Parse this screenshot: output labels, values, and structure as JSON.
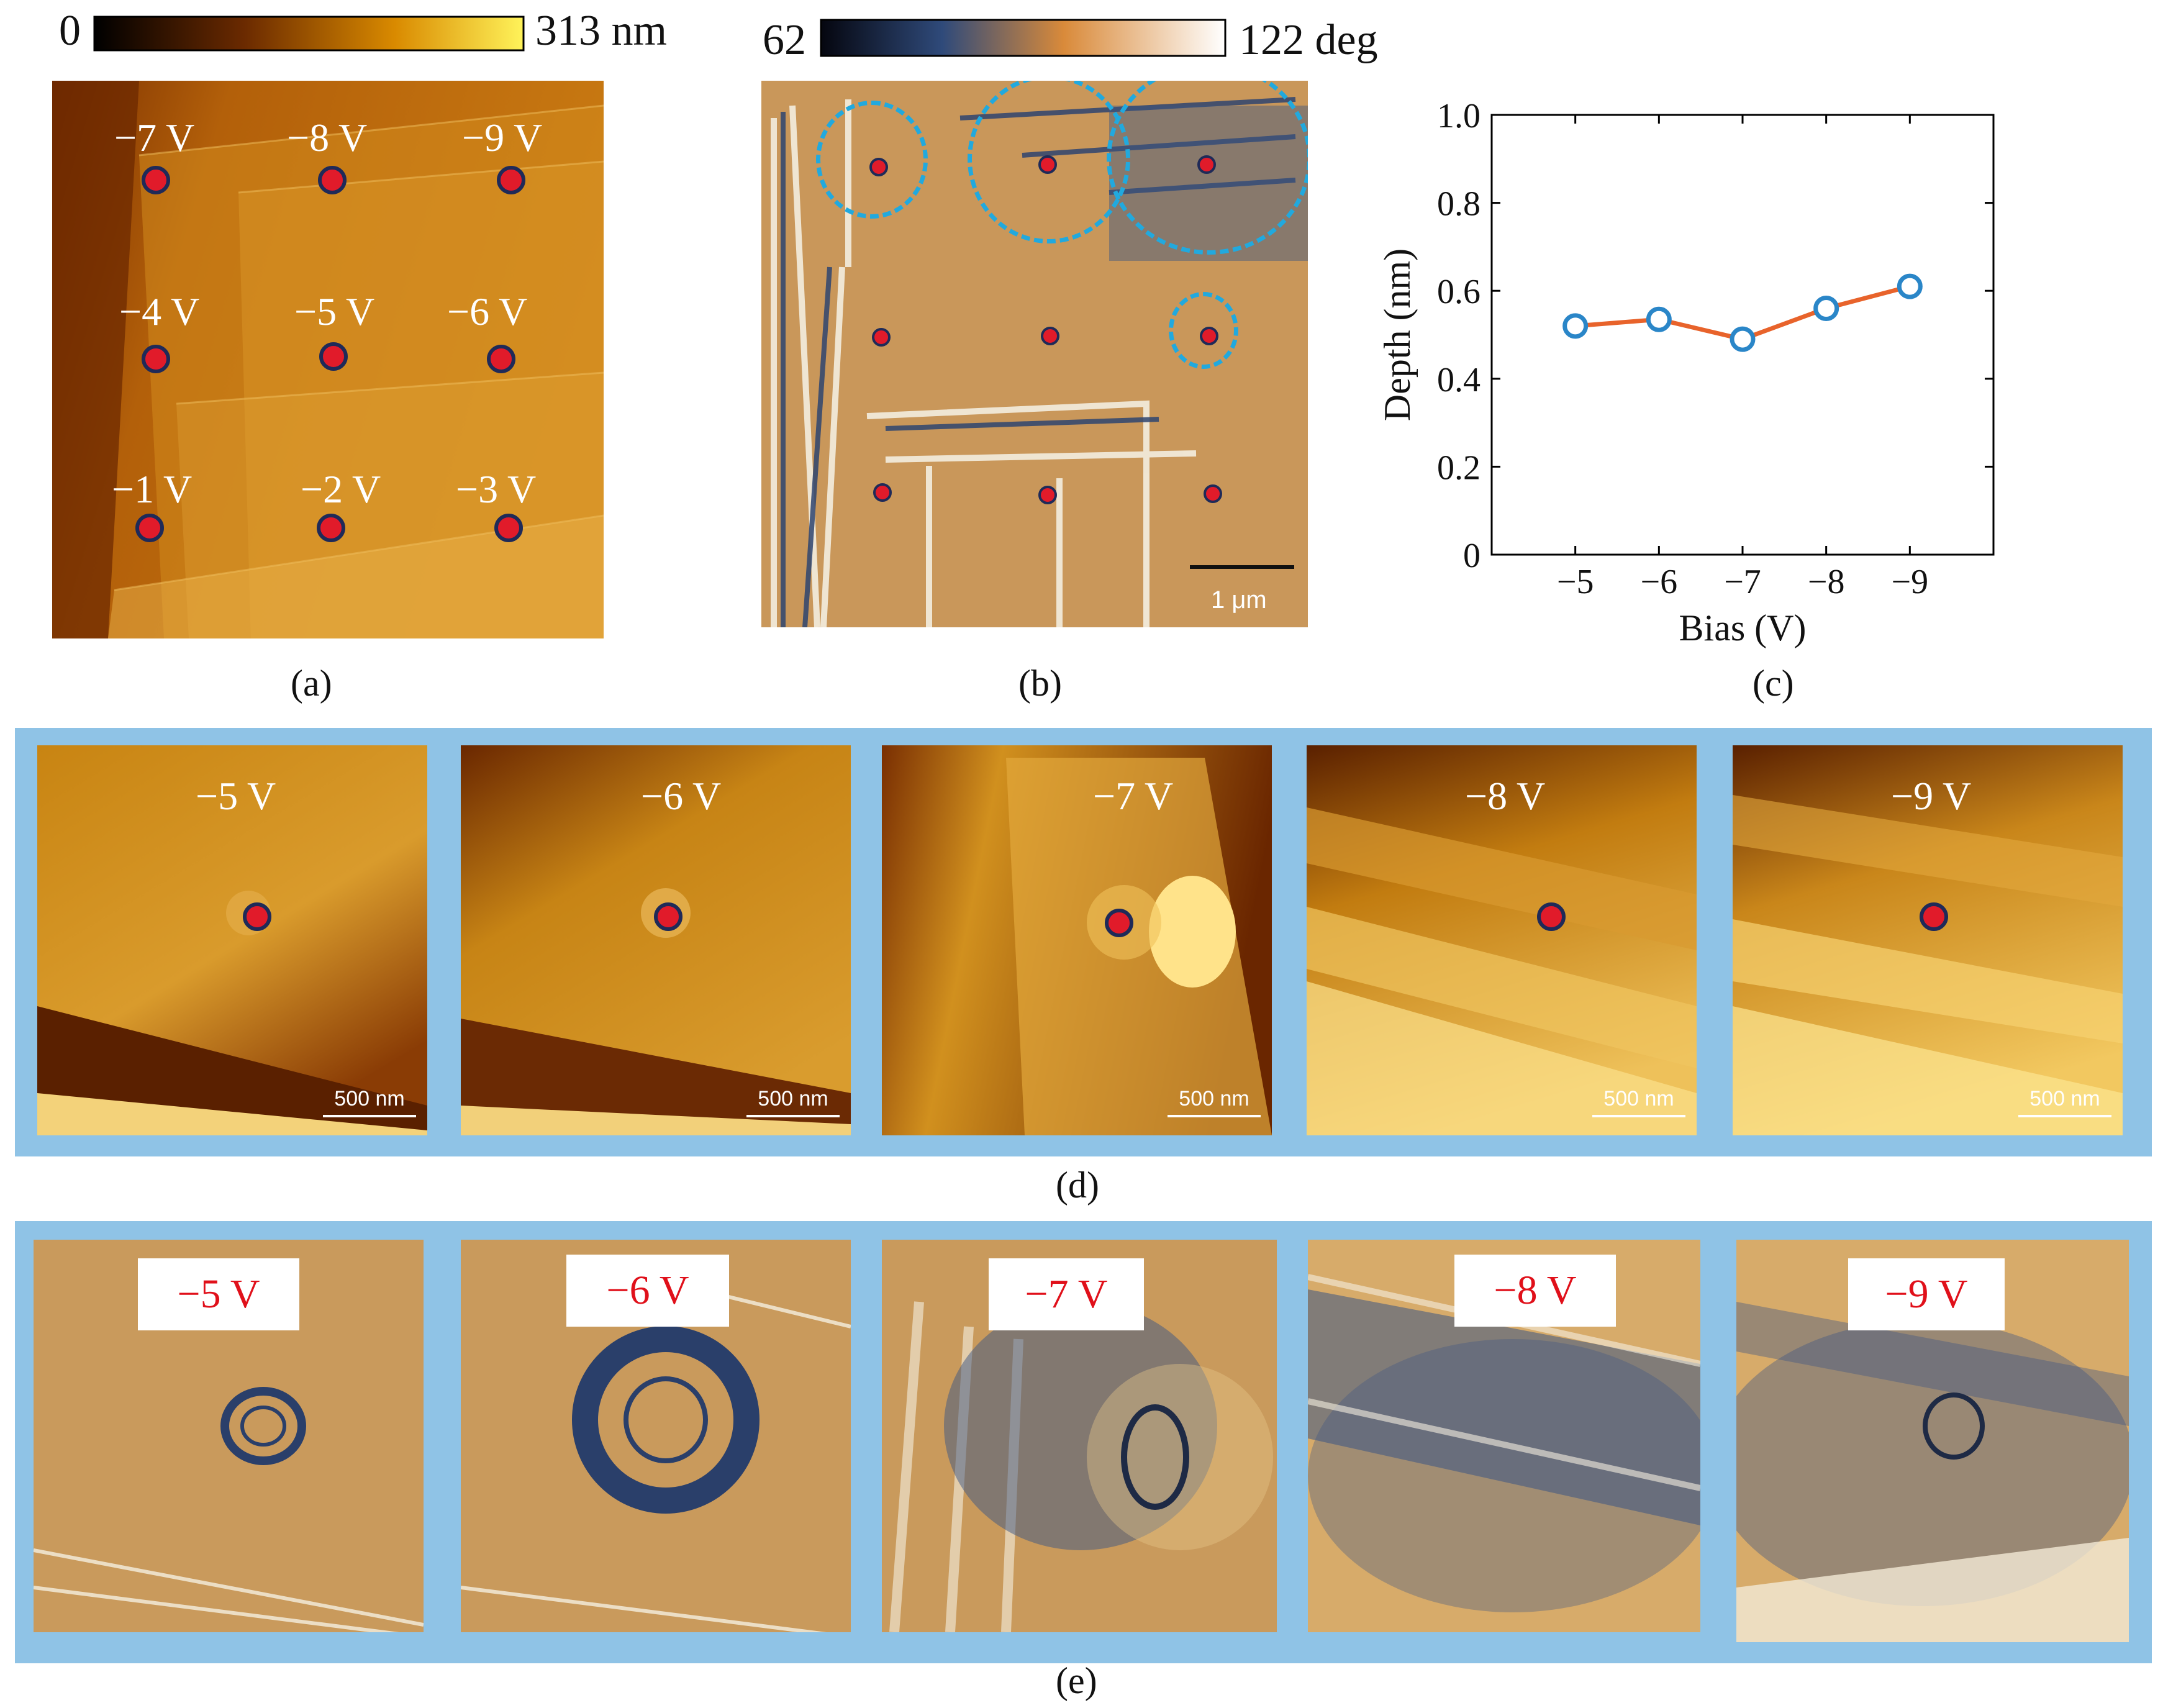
{
  "panel_a": {
    "caption": "(a)",
    "colorbar": {
      "min_label": "0",
      "max_label": "313 nm"
    },
    "grid_labels": [
      "−7 V",
      "−8 V",
      "−9 V",
      "−4 V",
      "−5 V",
      "−6 V",
      "−1 V",
      "−2 V",
      "−3 V"
    ]
  },
  "panel_b": {
    "caption": "(b)",
    "colorbar": {
      "min_label": "62",
      "max_label": "122 deg"
    },
    "scalebar": "1 μm"
  },
  "panel_c": {
    "caption": "(c)"
  },
  "panel_d": {
    "caption": "(d)",
    "tiles": [
      {
        "label": "−5 V",
        "scalebar": "500 nm"
      },
      {
        "label": "−6 V",
        "scalebar": "500 nm"
      },
      {
        "label": "−7 V",
        "scalebar": "500 nm"
      },
      {
        "label": "−8 V",
        "scalebar": "500 nm"
      },
      {
        "label": "−9 V",
        "scalebar": "500 nm"
      }
    ]
  },
  "panel_e": {
    "caption": "(e)",
    "tiles": [
      {
        "label": "−5 V"
      },
      {
        "label": "−6 V"
      },
      {
        "label": "−7 V"
      },
      {
        "label": "−8 V"
      },
      {
        "label": "−9 V"
      }
    ]
  },
  "colors": {
    "line": "#e8632b",
    "marker_edge": "#2a86c8",
    "band": "#8fc3e6",
    "tag_text": "#e0101a"
  },
  "chart_data": {
    "type": "line",
    "categories": [
      "−5",
      "−6",
      "−7",
      "−8",
      "−9"
    ],
    "x": [
      -5,
      -6,
      -7,
      -8,
      -9
    ],
    "series": [
      {
        "values": [
          0.52,
          0.535,
          0.49,
          0.56,
          0.61
        ]
      }
    ],
    "xlabel": "Bias (V)",
    "ylabel": "Depth (nm)",
    "ylim": [
      0,
      1.0
    ],
    "yticks": [
      "0",
      "0.2",
      "0.4",
      "0.6",
      "0.8",
      "1.0"
    ],
    "grid": false
  }
}
